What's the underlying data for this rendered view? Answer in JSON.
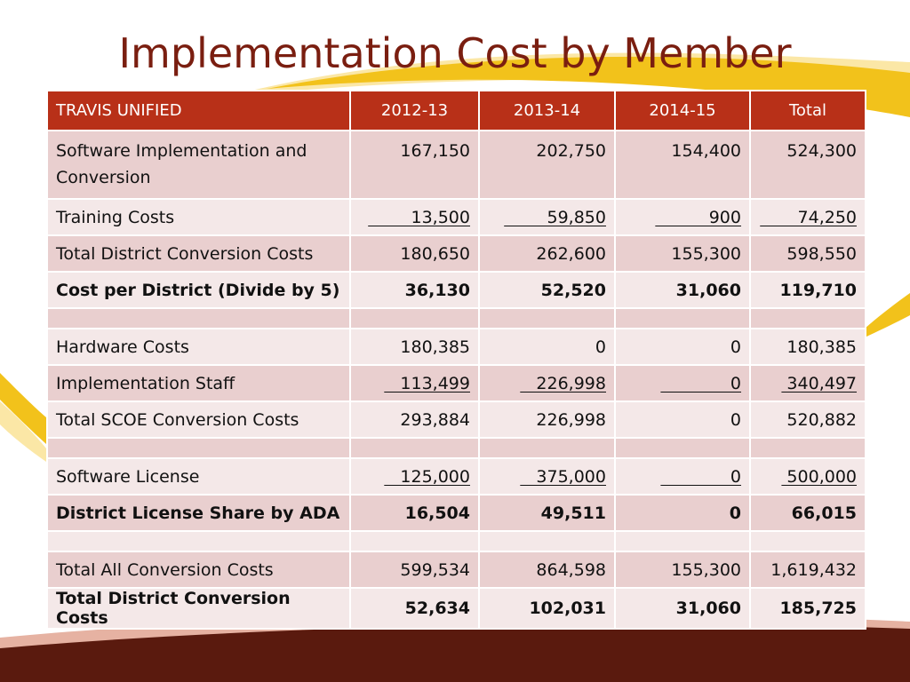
{
  "slide": {
    "title": "Implementation Cost by Member"
  },
  "table": {
    "headers": [
      "TRAVIS UNIFIED",
      "2012-13",
      "2013-14",
      "2014-15",
      "Total"
    ],
    "rows": [
      {
        "label": "Software Implementation and Conversion",
        "values": [
          "167,150",
          "202,750",
          "154,400",
          "524,300"
        ]
      },
      {
        "label": "Training Costs",
        "values": [
          "13,500",
          "59,850",
          "900",
          "74,250"
        ],
        "underlined": true
      },
      {
        "label": "Total District Conversion Costs",
        "values": [
          "180,650",
          "262,600",
          "155,300",
          "598,550"
        ]
      },
      {
        "label": "Cost per District (Divide by 5)",
        "values": [
          "36,130",
          "52,520",
          "31,060",
          "119,710"
        ],
        "bold": true
      },
      {
        "label": "",
        "values": [
          "",
          "",
          "",
          ""
        ]
      },
      {
        "label": "Hardware Costs",
        "values": [
          "180,385",
          "0",
          "0",
          "180,385"
        ]
      },
      {
        "label": "Implementation Staff",
        "values": [
          "113,499",
          "226,998",
          "0",
          "340,497"
        ],
        "underlined": true
      },
      {
        "label": "Total SCOE Conversion Costs",
        "values": [
          "293,884",
          "226,998",
          "0",
          "520,882"
        ]
      },
      {
        "label": "",
        "values": [
          "",
          "",
          "",
          ""
        ]
      },
      {
        "label": "Software License",
        "values": [
          "125,000",
          "375,000",
          "0",
          "500,000"
        ],
        "underlined": true
      },
      {
        "label": "District License Share by ADA",
        "values": [
          "16,504",
          "49,511",
          "0",
          "66,015"
        ],
        "bold": true
      },
      {
        "label": "",
        "values": [
          "",
          "",
          "",
          ""
        ]
      },
      {
        "label": "Total All Conversion Costs",
        "values": [
          "599,534",
          "864,598",
          "155,300",
          "1,619,432"
        ]
      },
      {
        "label": "Total District Conversion Costs",
        "values": [
          "52,634",
          "102,031",
          "31,060",
          "185,725"
        ],
        "bold": true
      }
    ]
  },
  "colors": {
    "title": "#7a1e10",
    "header_bg": "#b83018",
    "row_odd": "#e9cfcf",
    "row_even": "#f4e8e8",
    "swoosh_gold": "#f2c21b",
    "swoosh_light": "#fbe7a6",
    "band_dark": "#5a1a0e"
  }
}
